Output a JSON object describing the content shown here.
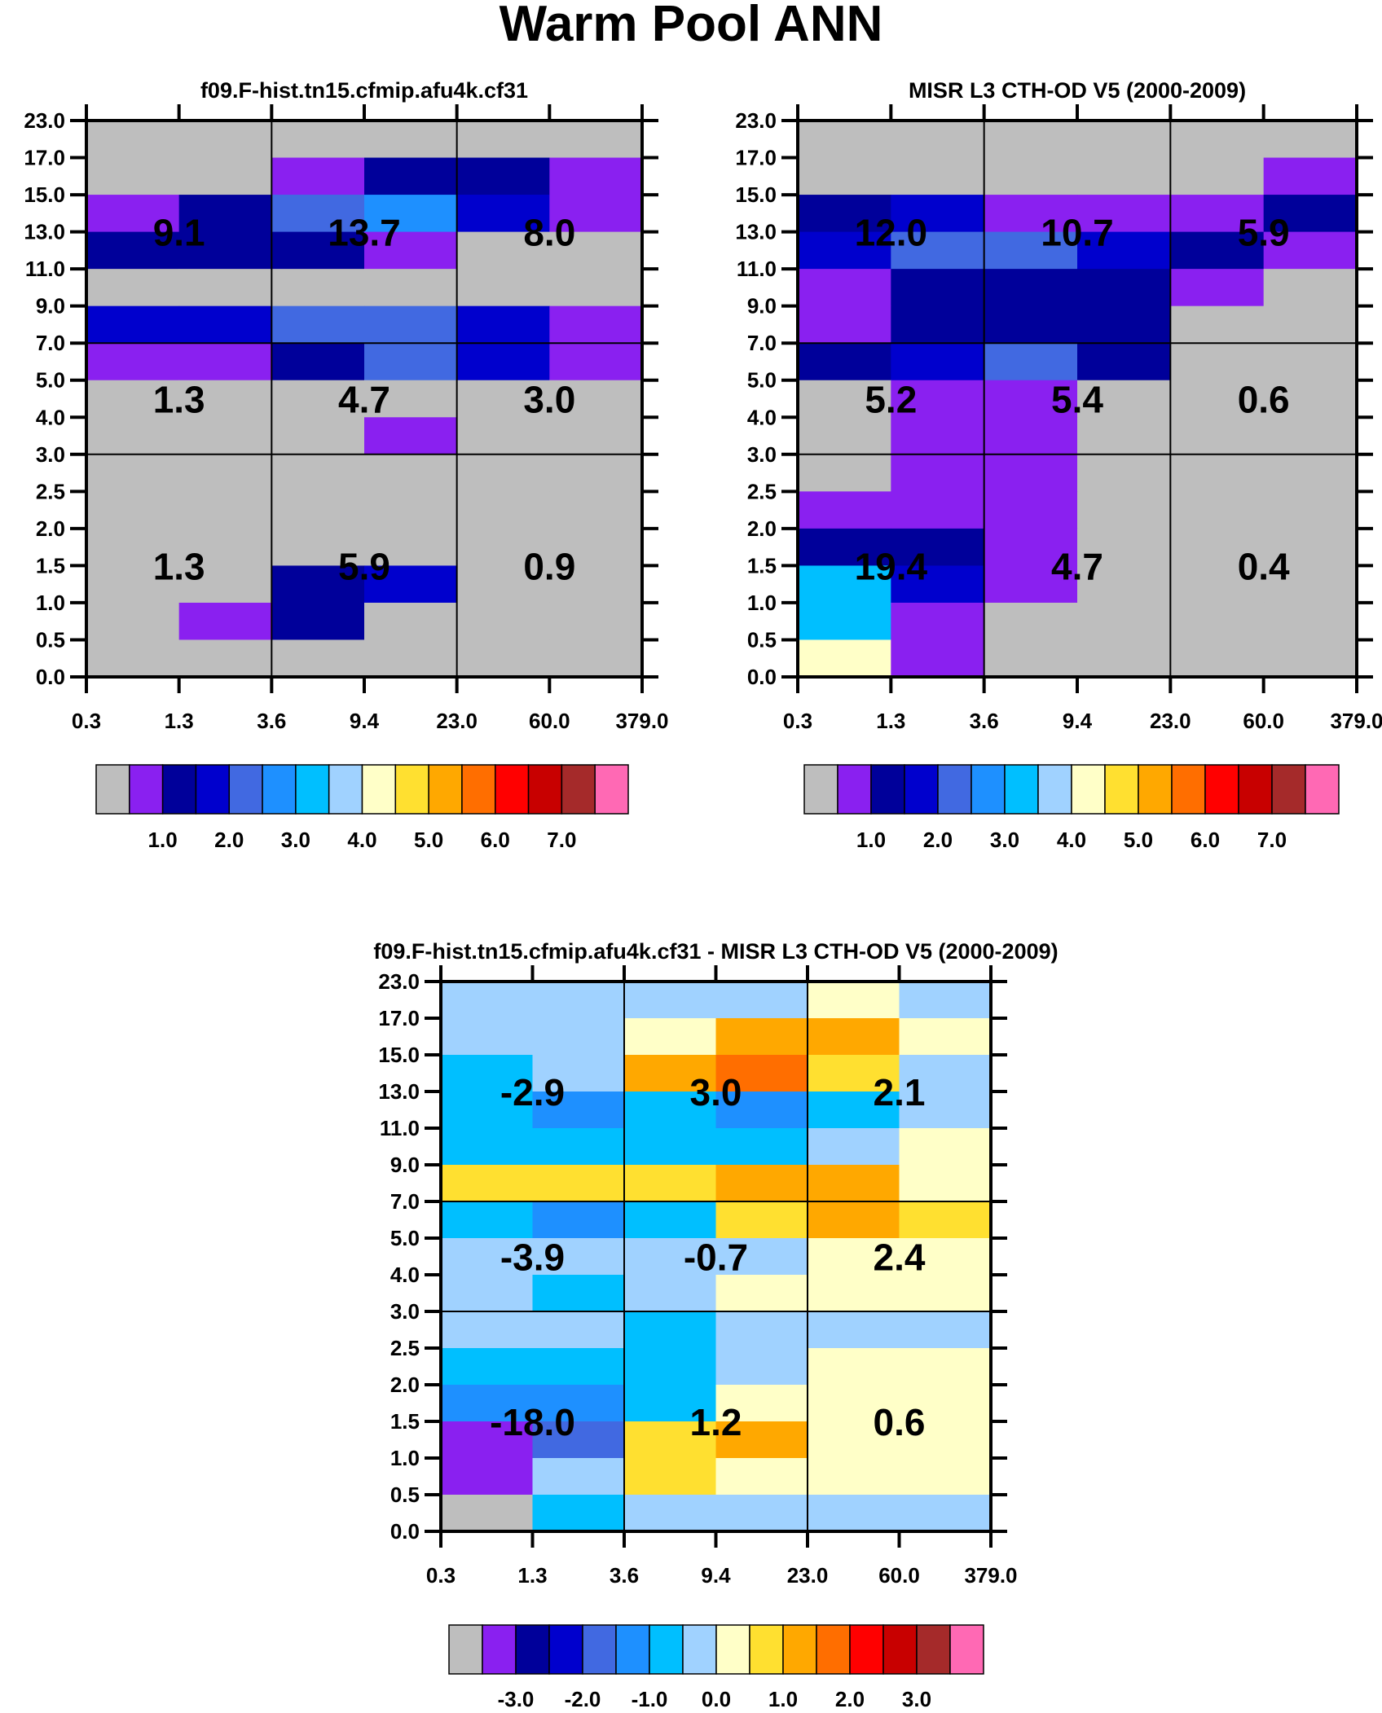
{
  "title": "Warm Pool ANN",
  "colors": [
    "#bebebe",
    "#8a20f0",
    "#00009a",
    "#0000cd",
    "#4169e1",
    "#1e90ff",
    "#00bfff",
    "#a0d2ff",
    "#ffffc8",
    "#ffe030",
    "#ffa800",
    "#ff6e00",
    "#ff0000",
    "#c80000",
    "#a52a2a",
    "#ff69b4"
  ],
  "chart_data": [
    {
      "type": "heatmap",
      "title": "f09.F-hist.tn15.cfmip.afu4k.cf31",
      "x_tick_labels": [
        "0.3",
        "1.3",
        "3.6",
        "9.4",
        "23.0",
        "60.0",
        "379.0"
      ],
      "y_tick_labels": [
        "0.0",
        "0.5",
        "1.0",
        "1.5",
        "2.0",
        "2.5",
        "3.0",
        "4.0",
        "5.0",
        "7.0",
        "9.0",
        "11.0",
        "13.0",
        "15.0",
        "17.0",
        "23.0"
      ],
      "cell_color_levels_top_to_bottom": [
        [
          0,
          0,
          0,
          0,
          0,
          0
        ],
        [
          0,
          0,
          1,
          2,
          2,
          1
        ],
        [
          1,
          2,
          4,
          5,
          3,
          1
        ],
        [
          2,
          2,
          2,
          1,
          0,
          0
        ],
        [
          0,
          0,
          0,
          0,
          0,
          0
        ],
        [
          3,
          3,
          4,
          4,
          3,
          1
        ],
        [
          1,
          1,
          2,
          4,
          3,
          1
        ],
        [
          0,
          0,
          0,
          0,
          0,
          0
        ],
        [
          0,
          0,
          0,
          1,
          0,
          0
        ],
        [
          0,
          0,
          0,
          0,
          0,
          0
        ],
        [
          0,
          0,
          0,
          0,
          0,
          0
        ],
        [
          0,
          0,
          0,
          0,
          0,
          0
        ],
        [
          0,
          0,
          2,
          3,
          0,
          0
        ],
        [
          0,
          1,
          2,
          0,
          0,
          0
        ],
        [
          0,
          0,
          0,
          0,
          0,
          0
        ]
      ],
      "box_values": [
        [
          "9.1",
          "13.7",
          "8.0"
        ],
        [
          "1.3",
          "4.7",
          "3.0"
        ],
        [
          "1.3",
          "5.9",
          "0.9"
        ]
      ],
      "colorbar_labels": [
        "1.0",
        "2.0",
        "3.0",
        "4.0",
        "5.0",
        "6.0",
        "7.0"
      ]
    },
    {
      "type": "heatmap",
      "title": "MISR L3 CTH-OD V5 (2000-2009)",
      "x_tick_labels": [
        "0.3",
        "1.3",
        "3.6",
        "9.4",
        "23.0",
        "60.0",
        "379.0"
      ],
      "y_tick_labels": [
        "0.0",
        "0.5",
        "1.0",
        "1.5",
        "2.0",
        "2.5",
        "3.0",
        "4.0",
        "5.0",
        "7.0",
        "9.0",
        "11.0",
        "13.0",
        "15.0",
        "17.0",
        "23.0"
      ],
      "cell_color_levels_top_to_bottom": [
        [
          0,
          0,
          0,
          0,
          0,
          0
        ],
        [
          0,
          0,
          0,
          0,
          0,
          1
        ],
        [
          2,
          3,
          1,
          1,
          1,
          2
        ],
        [
          3,
          4,
          4,
          3,
          2,
          1
        ],
        [
          1,
          2,
          2,
          2,
          1,
          0
        ],
        [
          1,
          2,
          2,
          2,
          0,
          0
        ],
        [
          2,
          3,
          4,
          2,
          0,
          0
        ],
        [
          0,
          1,
          1,
          0,
          0,
          0
        ],
        [
          0,
          1,
          1,
          0,
          0,
          0
        ],
        [
          0,
          1,
          1,
          0,
          0,
          0
        ],
        [
          1,
          1,
          1,
          0,
          0,
          0
        ],
        [
          2,
          2,
          1,
          0,
          0,
          0
        ],
        [
          6,
          3,
          1,
          0,
          0,
          0
        ],
        [
          6,
          1,
          0,
          0,
          0,
          0
        ],
        [
          8,
          1,
          0,
          0,
          0,
          0
        ]
      ],
      "box_values": [
        [
          "12.0",
          "10.7",
          "5.9"
        ],
        [
          "5.2",
          "5.4",
          "0.6"
        ],
        [
          "19.4",
          "4.7",
          "0.4"
        ]
      ],
      "colorbar_labels": [
        "1.0",
        "2.0",
        "3.0",
        "4.0",
        "5.0",
        "6.0",
        "7.0"
      ]
    },
    {
      "type": "heatmap",
      "title": "f09.F-hist.tn15.cfmip.afu4k.cf31 - MISR L3 CTH-OD V5 (2000-2009)",
      "x_tick_labels": [
        "0.3",
        "1.3",
        "3.6",
        "9.4",
        "23.0",
        "60.0",
        "379.0"
      ],
      "y_tick_labels": [
        "0.0",
        "0.5",
        "1.0",
        "1.5",
        "2.0",
        "2.5",
        "3.0",
        "4.0",
        "5.0",
        "7.0",
        "9.0",
        "11.0",
        "13.0",
        "15.0",
        "17.0",
        "23.0"
      ],
      "cell_color_levels_top_to_bottom": [
        [
          7,
          7,
          7,
          7,
          8,
          7
        ],
        [
          7,
          7,
          8,
          10,
          10,
          8
        ],
        [
          6,
          7,
          10,
          11,
          9,
          7
        ],
        [
          6,
          5,
          6,
          5,
          6,
          7
        ],
        [
          6,
          6,
          6,
          6,
          7,
          8
        ],
        [
          9,
          9,
          9,
          10,
          10,
          8
        ],
        [
          6,
          5,
          6,
          9,
          10,
          9
        ],
        [
          7,
          7,
          7,
          7,
          8,
          8
        ],
        [
          7,
          6,
          7,
          8,
          8,
          8
        ],
        [
          7,
          7,
          6,
          7,
          7,
          7
        ],
        [
          6,
          6,
          6,
          7,
          8,
          8
        ],
        [
          5,
          5,
          6,
          8,
          8,
          8
        ],
        [
          1,
          4,
          9,
          10,
          8,
          8
        ],
        [
          1,
          7,
          9,
          8,
          8,
          8
        ],
        [
          0,
          6,
          7,
          7,
          7,
          7
        ]
      ],
      "box_values": [
        [
          "-2.9",
          "3.0",
          "2.1"
        ],
        [
          "-3.9",
          "-0.7",
          "2.4"
        ],
        [
          "-18.0",
          "1.2",
          "0.6"
        ]
      ],
      "colorbar_labels": [
        "-3.0",
        "-2.0",
        "-1.0",
        "0.0",
        "1.0",
        "2.0",
        "3.0"
      ]
    }
  ]
}
